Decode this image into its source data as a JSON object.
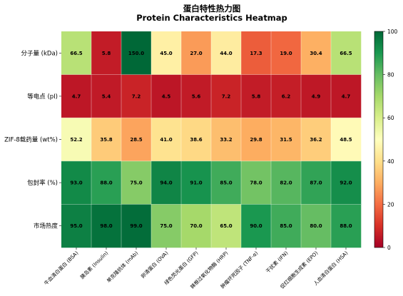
{
  "chart_data": {
    "type": "heatmap",
    "title": "蛋白特性热力图",
    "subtitle": "Protein Characteristics Heatmap",
    "rows": [
      "分子量 (kDa)",
      "等电点 (pI)",
      "ZIF-8载药量 (wt%)",
      "包封率 (%)",
      "市场热度"
    ],
    "columns": [
      "牛血清白蛋白 (BSA)",
      "胰岛素 (Insulin)",
      "单克隆抗体 (mAb)",
      "卵清蛋白 (OVA)",
      "绿色荧光蛋白 (GFP)",
      "辣根过氧化物酶 (HRP)",
      "肿瘤坏死因子 (TNF-α)",
      "干扰素 (IFN)",
      "促红细胞生成素 (EPO)",
      "人血清白蛋白 (HSA)"
    ],
    "values": [
      [
        66.5,
        5.8,
        150.0,
        45.0,
        27.0,
        44.0,
        17.3,
        19.0,
        30.4,
        66.5
      ],
      [
        4.7,
        5.4,
        7.2,
        4.5,
        5.6,
        7.2,
        5.8,
        6.2,
        4.9,
        4.7
      ],
      [
        52.2,
        35.8,
        28.5,
        41.0,
        38.6,
        33.2,
        29.8,
        31.5,
        36.2,
        48.5
      ],
      [
        93.0,
        88.0,
        75.0,
        94.0,
        91.0,
        85.0,
        78.0,
        82.0,
        87.0,
        92.0
      ],
      [
        95.0,
        98.0,
        99.0,
        75.0,
        70.0,
        65.0,
        90.0,
        85.0,
        80.0,
        88.0
      ]
    ],
    "cell_labels": [
      [
        "66.5",
        "5.8",
        "150.0",
        "45.0",
        "27.0",
        "44.0",
        "17.3",
        "19.0",
        "30.4",
        "66.5"
      ],
      [
        "4.7",
        "5.4",
        "7.2",
        "4.5",
        "5.6",
        "7.2",
        "5.8",
        "6.2",
        "4.9",
        "4.7"
      ],
      [
        "52.2",
        "35.8",
        "28.5",
        "41.0",
        "38.6",
        "33.2",
        "29.8",
        "31.5",
        "36.2",
        "48.5"
      ],
      [
        "93.0",
        "88.0",
        "75.0",
        "94.0",
        "91.0",
        "85.0",
        "78.0",
        "82.0",
        "87.0",
        "92.0"
      ],
      [
        "95.0",
        "98.0",
        "99.0",
        "75.0",
        "70.0",
        "65.0",
        "90.0",
        "85.0",
        "80.0",
        "88.0"
      ]
    ],
    "colorscale": "RdYlGn",
    "vmin": 0,
    "vmax": 100,
    "colorbar_ticks": [
      "0",
      "20",
      "40",
      "60",
      "80",
      "100"
    ],
    "grid": true
  }
}
